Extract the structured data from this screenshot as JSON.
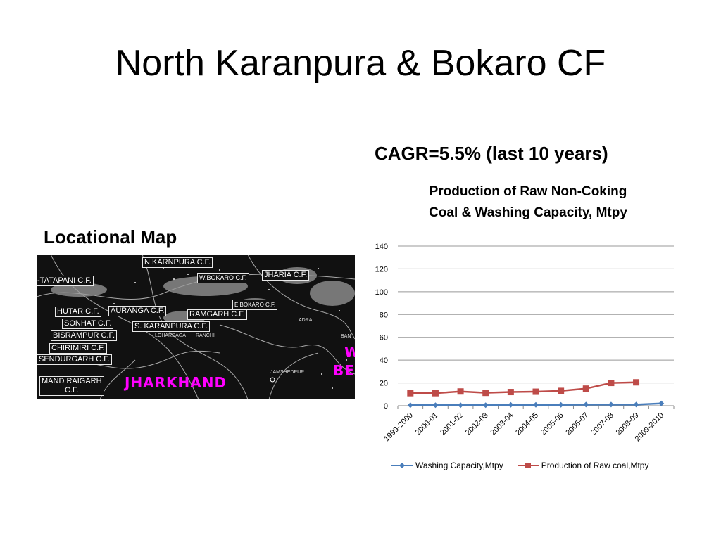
{
  "slide": {
    "title": "North Karanpura & Bokaro CF",
    "cagr": "CAGR=5.5% (last 10 years)",
    "map_label": "Locational Map"
  },
  "map": {
    "labels": {
      "n_karanpura": "N.KARNPURA C.F.",
      "tatapani": "-TATAPANI C.F.",
      "w_bokaro": "W.BOKARO C.F.",
      "jharia": "JHARIA C.F.",
      "e_bokaro": "E.BOKARO C.F.",
      "hutar": "HUTAR C.F.",
      "auranga": "AURANGA C.F.",
      "ramgarh": "RAMGARH C.F.",
      "sonhat": "SONHAT C.F.",
      "s_karanpura": "S. KARANPURA C.F.",
      "bisrampur": "BISRAMPUR C.F.",
      "chirimiri": "CHIRIMIRI C.F.",
      "sendurgarh": "SENDURGARH C.F.",
      "mand_raigarh_1": "MAND RAIGARH",
      "mand_raigarh_2": "C.F."
    },
    "towns": {
      "adra": "ADRA",
      "lohardaga": "LOHARDAGA",
      "ranchi": "RANCHI",
      "jamshedpur": "JAMSHEDPUR",
      "ban": "BAN"
    },
    "state": "JHARKHAND",
    "state_partial_1": "W",
    "state_partial_2": "BE"
  },
  "chart_data": {
    "type": "line",
    "title_line1": "Production of Raw Non-Coking",
    "title_line2": "Coal & Washing Capacity, Mtpy",
    "categories": [
      "1999-2000",
      "2000-01",
      "2001-02",
      "2002-03",
      "2003-04",
      "2004-05",
      "2005-06",
      "2006-07",
      "2007-08",
      "2008-09",
      "2009-2010"
    ],
    "ylim": [
      0,
      140
    ],
    "yticks": [
      "0",
      "20",
      "40",
      "60",
      "80",
      "100",
      "120",
      "140"
    ],
    "grid": true,
    "legend_position": "bottom",
    "series": [
      {
        "name": "Washing Capacity,Mtpy",
        "color": "#4a7ebb",
        "marker": "diamond",
        "values": [
          0.5,
          0.5,
          0.5,
          0.5,
          0.8,
          0.8,
          0.8,
          1.0,
          1.0,
          1.0,
          2.0
        ]
      },
      {
        "name": "Production of Raw coal,Mtpy",
        "color": "#be4b48",
        "marker": "square",
        "values": [
          11,
          11,
          12.5,
          11.3,
          12,
          12.3,
          13,
          15,
          20,
          20.5,
          null
        ]
      }
    ]
  }
}
